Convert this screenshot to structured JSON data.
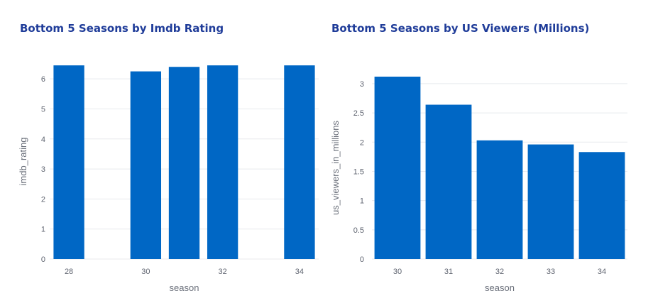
{
  "bar_color": "#0067c5",
  "grid_color": "#e8eaee",
  "chart_data": [
    {
      "type": "bar",
      "title": "Bottom 5 Seasons by Imdb Rating",
      "xlabel": "season",
      "ylabel": "imdb_rating",
      "x": [
        28,
        30,
        31,
        32,
        34
      ],
      "values": [
        6.45,
        6.25,
        6.4,
        6.45,
        6.45
      ],
      "xlim": [
        27.5,
        34.5
      ],
      "ylim": [
        0,
        6.5
      ],
      "xticks": [
        28,
        30,
        32,
        34
      ],
      "yticks": [
        0,
        1,
        2,
        3,
        4,
        5,
        6
      ],
      "grid": true
    },
    {
      "type": "bar",
      "title": "Bottom 5 Seasons by US Viewers (Millions)",
      "xlabel": "season",
      "ylabel": "us_viewers_in_millions",
      "categories": [
        "30",
        "31",
        "32",
        "33",
        "34"
      ],
      "values": [
        3.12,
        2.64,
        2.03,
        1.96,
        1.83
      ],
      "ylim": [
        0,
        3.12
      ],
      "yticks": [
        0,
        0.5,
        1,
        1.5,
        2,
        2.5,
        3
      ],
      "grid": true
    }
  ]
}
